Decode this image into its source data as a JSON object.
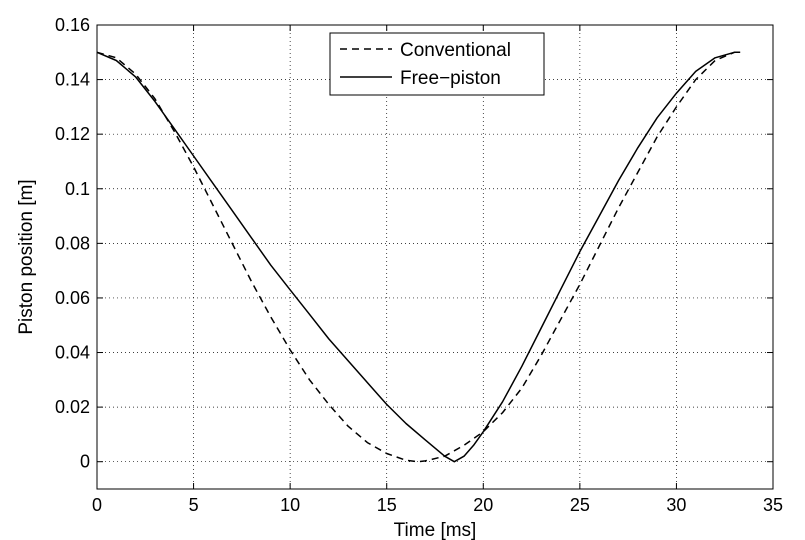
{
  "chart_data": {
    "type": "line",
    "xlabel": "Time [ms]",
    "ylabel": "Piston position [m]",
    "xlim": [
      0,
      35
    ],
    "ylim": [
      -0.01,
      0.16
    ],
    "x_ticks": [
      "0",
      "5",
      "10",
      "15",
      "20",
      "25",
      "30",
      "35"
    ],
    "y_ticks": [
      "0",
      "0.02",
      "0.04",
      "0.06",
      "0.08",
      "0.1",
      "0.12",
      "0.14",
      "0.16"
    ],
    "grid": true,
    "legend": "top-center",
    "series": [
      {
        "name": "Conventional",
        "style": "dashed",
        "color": "#000000",
        "x": [
          0,
          1,
          2,
          3,
          4,
          5,
          6,
          7,
          8,
          9,
          10,
          11,
          12,
          13,
          14,
          15,
          16,
          16.6,
          17,
          18,
          19,
          20,
          21,
          22,
          23,
          24,
          25,
          26,
          27,
          28,
          29,
          30,
          31,
          32,
          33,
          33.3
        ],
        "y": [
          0.15,
          0.148,
          0.142,
          0.133,
          0.121,
          0.108,
          0.094,
          0.08,
          0.066,
          0.053,
          0.041,
          0.03,
          0.021,
          0.013,
          0.007,
          0.003,
          0.0005,
          0.0,
          0.0003,
          0.002,
          0.006,
          0.011,
          0.018,
          0.027,
          0.039,
          0.052,
          0.065,
          0.079,
          0.093,
          0.106,
          0.119,
          0.13,
          0.14,
          0.147,
          0.15,
          0.15
        ]
      },
      {
        "name": "Free−piston",
        "style": "solid",
        "color": "#000000",
        "x": [
          0,
          1,
          2,
          3,
          4,
          5,
          6,
          7,
          8,
          9,
          10,
          11,
          12,
          13,
          14,
          15,
          16,
          17,
          17.5,
          18,
          18.5,
          19,
          19.5,
          20,
          21,
          22,
          23,
          24,
          25,
          26,
          27,
          28,
          29,
          30,
          31,
          32,
          33,
          33.3
        ],
        "y": [
          0.15,
          0.147,
          0.141,
          0.132,
          0.122,
          0.112,
          0.102,
          0.092,
          0.082,
          0.072,
          0.063,
          0.054,
          0.045,
          0.037,
          0.029,
          0.021,
          0.014,
          0.008,
          0.005,
          0.002,
          0.0,
          0.002,
          0.006,
          0.011,
          0.022,
          0.035,
          0.049,
          0.063,
          0.077,
          0.09,
          0.103,
          0.115,
          0.126,
          0.135,
          0.143,
          0.148,
          0.15,
          0.15
        ]
      }
    ]
  }
}
